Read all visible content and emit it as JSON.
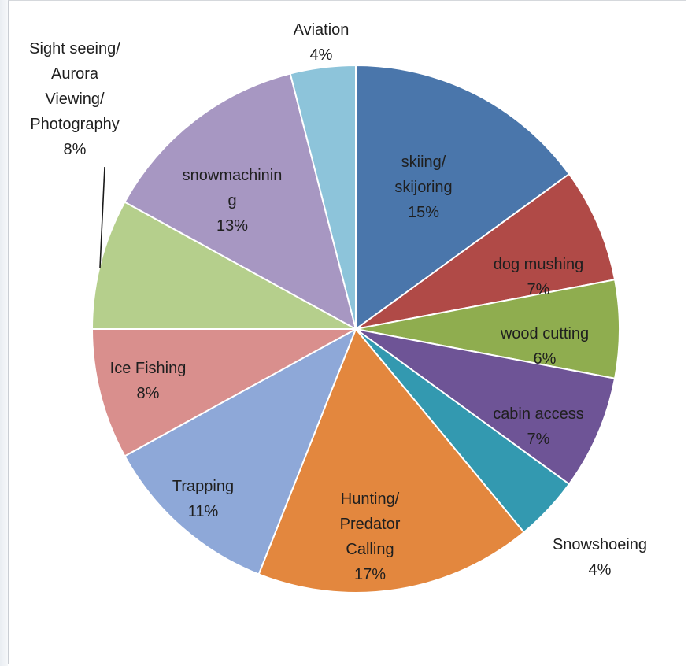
{
  "chart_data": {
    "type": "pie",
    "title": "",
    "slices": [
      {
        "label": "skiing/ skijoring",
        "label_lines": [
          "skiing/",
          "skijoring"
        ],
        "percent_text": "15%",
        "value": 15,
        "color": "#4a76ab"
      },
      {
        "label": "dog mushing",
        "label_lines": [
          "dog mushing"
        ],
        "percent_text": "7%",
        "value": 7,
        "color": "#b04a47"
      },
      {
        "label": "wood cutting",
        "label_lines": [
          "wood cutting"
        ],
        "percent_text": "6%",
        "value": 6,
        "color": "#8fad4f"
      },
      {
        "label": "cabin access",
        "label_lines": [
          "cabin access"
        ],
        "percent_text": "7%",
        "value": 7,
        "color": "#6e5496"
      },
      {
        "label": "Snowshoeing",
        "label_lines": [
          "Snowshoeing"
        ],
        "percent_text": "4%",
        "value": 4,
        "color": "#3399b0"
      },
      {
        "label": "Hunting/ Predator Calling",
        "label_lines": [
          "Hunting/",
          "Predator",
          "Calling"
        ],
        "percent_text": "17%",
        "value": 17,
        "color": "#e3873e"
      },
      {
        "label": "Trapping",
        "label_lines": [
          "Trapping"
        ],
        "percent_text": "11%",
        "value": 11,
        "color": "#8ea8d8"
      },
      {
        "label": "Ice Fishing",
        "label_lines": [
          "Ice Fishing"
        ],
        "percent_text": "8%",
        "value": 8,
        "color": "#d98f8d"
      },
      {
        "label": "Sight seeing/ Aurora Viewing/ Photography",
        "label_lines": [
          "Sight seeing/",
          "Aurora",
          "Viewing/",
          "Photography"
        ],
        "percent_text": "8%",
        "value": 8,
        "color": "#b5cf8c"
      },
      {
        "label": "snowmachining",
        "label_lines": [
          "snowmachinin",
          "g"
        ],
        "percent_text": "13%",
        "value": 13,
        "color": "#a797c2"
      },
      {
        "label": "Aviation",
        "label_lines": [
          "Aviation"
        ],
        "percent_text": "4%",
        "value": 4,
        "color": "#8dc4da"
      }
    ]
  }
}
